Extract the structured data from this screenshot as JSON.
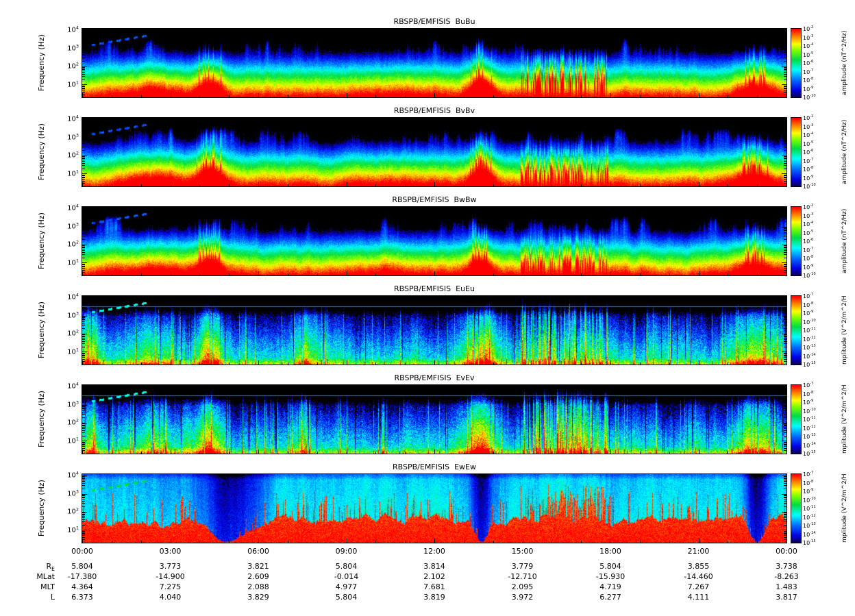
{
  "chart_data": {
    "type": "heatmap",
    "description": "Six stacked 24-hour dynamic power-spectral-density spectrograms from RBSPB/EMFISIS (three magnetic components BuBu, BvBv, BwBw and three electric components EuEu, EvEv, EwEw), frequency vs time, rainbow color scale.",
    "freq_axis": {
      "label": "Frequency (Hz)",
      "tick_exponents": [
        4,
        3,
        2,
        1
      ],
      "log_min": 0.3,
      "log_max": 4.08
    },
    "time_ticks": [
      "00:00",
      "03:00",
      "06:00",
      "09:00",
      "12:00",
      "15:00",
      "18:00",
      "21:00",
      "00:00"
    ],
    "colormap": [
      {
        "v": 0.0,
        "c": [
          15,
          0,
          90
        ]
      },
      {
        "v": 0.1,
        "c": [
          0,
          0,
          230
        ]
      },
      {
        "v": 0.25,
        "c": [
          0,
          110,
          255
        ]
      },
      {
        "v": 0.4,
        "c": [
          0,
          255,
          255
        ]
      },
      {
        "v": 0.55,
        "c": [
          0,
          220,
          70
        ]
      },
      {
        "v": 0.68,
        "c": [
          120,
          255,
          0
        ]
      },
      {
        "v": 0.78,
        "c": [
          255,
          255,
          0
        ]
      },
      {
        "v": 0.88,
        "c": [
          255,
          140,
          0
        ]
      },
      {
        "v": 1.0,
        "c": [
          255,
          0,
          0
        ]
      }
    ],
    "features": {
      "comb_window": {
        "x0": 0.622,
        "x1": 0.747
      },
      "dash_line": {
        "x0": 0.013,
        "y0": 0.76,
        "x1": 0.092,
        "y1": 0.9
      }
    },
    "panels": [
      {
        "id": "BuBu",
        "title": "RBSPB/EMFISIS  BuBu",
        "kind": "B",
        "seed": 11,
        "colorbar_label": "amplitude (nT^2/Hz)",
        "colorbar_exponents": [
          -2,
          -3,
          -4,
          -5,
          -6,
          -7,
          -8,
          -9,
          -10
        ],
        "comb_amp": 0.9,
        "humps": [
          {
            "x": 0.104,
            "w": 0.05,
            "amp": 0.2
          },
          {
            "x": 0.181,
            "w": 0.02,
            "amp": 0.45
          },
          {
            "x": 0.43,
            "w": 0.07,
            "amp": 0.1
          },
          {
            "x": 0.566,
            "w": 0.018,
            "amp": 0.5
          },
          {
            "x": 0.955,
            "w": 0.03,
            "amp": 0.34
          }
        ]
      },
      {
        "id": "BvBv",
        "title": "RBSPB/EMFISIS  BvBv",
        "kind": "B",
        "seed": 22,
        "colorbar_label": "amplitude (nT^2/Hz)",
        "colorbar_exponents": [
          -2,
          -3,
          -4,
          -5,
          -6,
          -7,
          -8,
          -9,
          -10
        ],
        "comb_amp": 0.55,
        "humps": [
          {
            "x": 0.104,
            "w": 0.05,
            "amp": 0.22
          },
          {
            "x": 0.181,
            "w": 0.02,
            "amp": 0.48
          },
          {
            "x": 0.43,
            "w": 0.07,
            "amp": 0.1
          },
          {
            "x": 0.566,
            "w": 0.018,
            "amp": 0.52
          },
          {
            "x": 0.955,
            "w": 0.03,
            "amp": 0.36
          }
        ]
      },
      {
        "id": "BwBw",
        "title": "RBSPB/EMFISIS  BwBw",
        "kind": "B",
        "seed": 33,
        "colorbar_label": "amplitude (nT^2/Hz)",
        "colorbar_exponents": [
          -2,
          -3,
          -4,
          -5,
          -6,
          -7,
          -8,
          -9,
          -10
        ],
        "comb_amp": 0.45,
        "humps": [
          {
            "x": 0.104,
            "w": 0.05,
            "amp": 0.2
          },
          {
            "x": 0.181,
            "w": 0.02,
            "amp": 0.42
          },
          {
            "x": 0.43,
            "w": 0.07,
            "amp": 0.1
          },
          {
            "x": 0.566,
            "w": 0.018,
            "amp": 0.46
          },
          {
            "x": 0.955,
            "w": 0.03,
            "amp": 0.32
          }
        ]
      },
      {
        "id": "EuEu",
        "title": "RBSPB/EMFISIS  EuEu",
        "kind": "E",
        "seed": 44,
        "colorbar_label": "mplitude (V^2/m^2/H",
        "colorbar_exponents": [
          -7,
          -8,
          -9,
          -10,
          -11,
          -12,
          -13,
          -14,
          -15
        ],
        "comb_amp": 0.35,
        "hline": 0.845,
        "humps": [
          {
            "x": 0.012,
            "w": 0.015,
            "amp": 0.4
          },
          {
            "x": 0.104,
            "w": 0.04,
            "amp": 0.22
          },
          {
            "x": 0.181,
            "w": 0.02,
            "amp": 0.5
          },
          {
            "x": 0.315,
            "w": 0.01,
            "amp": 0.3
          },
          {
            "x": 0.566,
            "w": 0.02,
            "amp": 0.55
          },
          {
            "x": 0.7,
            "w": 0.06,
            "amp": 0.18
          },
          {
            "x": 0.955,
            "w": 0.03,
            "amp": 0.4
          }
        ]
      },
      {
        "id": "EvEv",
        "title": "RBSPB/EMFISIS  EvEv",
        "kind": "E",
        "seed": 55,
        "colorbar_label": "mplitude (V^2/m^2/H",
        "colorbar_exponents": [
          -7,
          -8,
          -9,
          -10,
          -11,
          -12,
          -13,
          -14,
          -15
        ],
        "comb_amp": 0.35,
        "hline": 0.845,
        "humps": [
          {
            "x": 0.012,
            "w": 0.015,
            "amp": 0.4
          },
          {
            "x": 0.104,
            "w": 0.04,
            "amp": 0.22
          },
          {
            "x": 0.181,
            "w": 0.02,
            "amp": 0.5
          },
          {
            "x": 0.315,
            "w": 0.01,
            "amp": 0.3
          },
          {
            "x": 0.566,
            "w": 0.02,
            "amp": 0.55
          },
          {
            "x": 0.7,
            "w": 0.06,
            "amp": 0.18
          },
          {
            "x": 0.955,
            "w": 0.03,
            "amp": 0.4
          }
        ]
      },
      {
        "id": "EwEw",
        "title": "RBSPB/EMFISIS  EwEw",
        "kind": "Ew",
        "seed": 66,
        "colorbar_label": "mplitude (V^2/m^2/H",
        "colorbar_exponents": [
          -7,
          -8,
          -9,
          -10,
          -11,
          -12,
          -13,
          -14,
          -15
        ],
        "comb_amp": 0.4,
        "humps": [],
        "dips": [
          {
            "x": 0.205,
            "w": 0.035
          },
          {
            "x": 0.567,
            "w": 0.012
          },
          {
            "x": 0.958,
            "w": 0.014
          }
        ]
      }
    ],
    "ephemeris": [
      {
        "label": "R_E",
        "values": [
          "5.804",
          "3.773",
          "3.821",
          "5.804",
          "3.814",
          "3.779",
          "5.804",
          "3.855",
          "3.738"
        ]
      },
      {
        "label": "MLat",
        "values": [
          "-17.380",
          "-14.900",
          "2.609",
          "-0.014",
          "2.102",
          "-12.710",
          "-15.930",
          "-14.460",
          "-8.263"
        ]
      },
      {
        "label": "MLT",
        "values": [
          "4.364",
          "7.275",
          "2.088",
          "4.977",
          "7.681",
          "2.095",
          "4.719",
          "7.267",
          "1.483"
        ]
      },
      {
        "label": "L",
        "values": [
          "6.373",
          "4.040",
          "3.829",
          "5.804",
          "3.819",
          "3.972",
          "6.277",
          "4.111",
          "3.817"
        ]
      }
    ]
  }
}
